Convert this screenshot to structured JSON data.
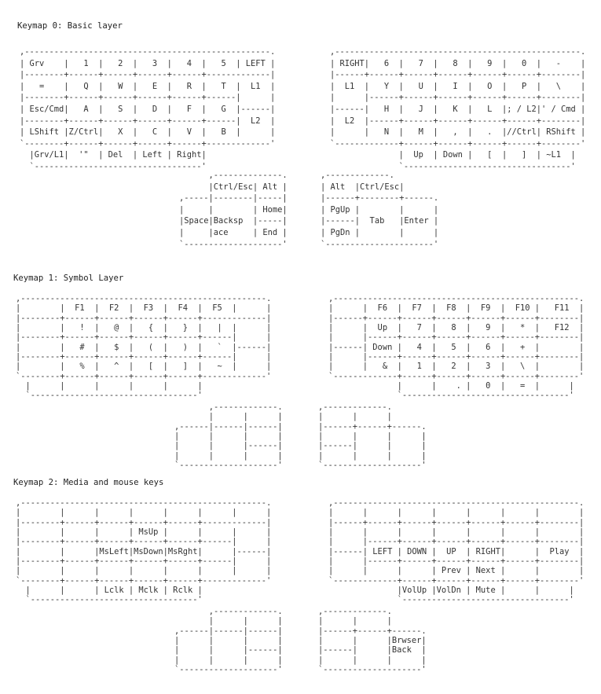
{
  "layers": [
    {
      "title": "Keymap 0: Basic layer",
      "left": [
        ",--------------------------------------------------.",
        "| Grv    |   1  |   2  |   3  |   4  |   5  | LEFT |",
        "|--------+------+------+------+------+-------------|",
        "|   =    |   Q  |   W  |   E  |   R  |   T  |  L1  |",
        "|--------+------+------+------+------+------|      |",
        "| Esc/Cmd|   A  |   S  |   D  |   F  |   G  |------|",
        "|--------+------+------+------+------+------|  L2  |",
        "| LShift |Z/Ctrl|   X  |   C  |   V  |   B  |      |",
        "`--------+------+------+------+------+-------------'",
        "  |Grv/L1|  '\"  | Del  | Left | Right|",
        "  `----------------------------------'"
      ],
      "left_thumb": [
        "      ,--------------.",
        "      |Ctrl/Esc| Alt |",
        ",-----|--------|-----|",
        "|     |        | Home|",
        "|Space|Backsp  |-----|",
        "|     |ace     | End |",
        "`--------------------'"
      ],
      "right": [
        ",--------------------------------------------------.",
        "| RIGHT|   6  |   7  |   8  |   9  |   0  |   -    |",
        "|------+------+------+------+------+------+--------|",
        "|  L1  |   Y  |   U  |   I  |   O  |   P  |   \\    |",
        "|      |------+------+------+------+------+--------|",
        "|------|   H  |   J  |   K  |   L  |; / L2|' / Cmd |",
        "|  L2  |------+------+------+------+------+--------|",
        "|      |   N  |   M  |   ,  |   .  |//Ctrl| RShift |",
        "`-------------+------+------+------+------+--------'",
        "              |  Up  | Down |   [  |   ]  | ~L1  |",
        "              `----------------------------------'"
      ],
      "right_thumb": [
        ",-------------.",
        "| Alt  |Ctrl/Esc|",
        "|------+--------+------.",
        "| PgUp |        |      |",
        "|------|  Tab   |Enter |",
        "| PgDn |        |      |",
        "`----------------------'"
      ]
    },
    {
      "title": "Keymap 1: Symbol Layer",
      "left": [
        ",--------------------------------------------------.",
        "|        |  F1  |  F2  |  F3  |  F4  |  F5  |      |",
        "|--------+------+------+------+------+-------------|",
        "|        |   !  |   @  |   {  |   }  |   |  |      |",
        "|--------+------+------+------+------+------|      |",
        "|        |   #  |   $  |   (  |   )  |   `  |------|",
        "|--------+------+------+------+------+------|      |",
        "|        |   %  |   ^  |   [  |   ]  |   ~  |      |",
        "`--------+------+------+------+------+-------------'",
        "  |      |      |      |      |      |",
        "  `----------------------------------'"
      ],
      "left_thumb": [
        "       ,-------------.",
        "       |      |      |",
        ",------|------|------|",
        "|      |      |      |",
        "|      |      |------|",
        "|      |      |      |",
        "`--------------------'"
      ],
      "right": [
        ",--------------------------------------------------.",
        "|      |  F6  |  F7  |  F8  |  F9  |  F10 |   F11  |",
        "|------+------+------+------+------+------+--------|",
        "|      |  Up  |   7  |   8  |   9  |   *  |   F12  |",
        "|      |------+------+------+------+------+--------|",
        "|------| Down |   4  |   5  |   6  |   +  |        |",
        "|      |------+------+------+------+------+--------|",
        "|      |   &  |   1  |   2  |   3  |   \\  |        |",
        "`-------------+------+------+------+------+--------'",
        "              |      |    . |   0  |   =  |      |",
        "              `----------------------------------'"
      ],
      "right_thumb": [
        ",-------------.",
        "|      |      |",
        "|------+------+------.",
        "|      |      |      |",
        "|------|      |      |",
        "|      |      |      |",
        "`--------------------'"
      ]
    },
    {
      "title": "Keymap 2: Media and mouse keys",
      "left": [
        ",--------------------------------------------------.",
        "|        |      |      |      |      |      |      |",
        "|--------+------+------+------+------+-------------|",
        "|        |      |      | MsUp |      |      |      |",
        "|--------+------+------+------+------+------|      |",
        "|        |      |MsLeft|MsDown|MsRght|      |------|",
        "|--------+------+------+------+------+------|      |",
        "|        |      |      |      |      |      |      |",
        "`--------+------+------+------+------+-------------'",
        "  |      |      | Lclk | Mclk | Rclk |",
        "  `----------------------------------'"
      ],
      "left_thumb": [
        "       ,-------------.",
        "       |      |      |",
        ",------|------|------|",
        "|      |      |      |",
        "|      |      |------|",
        "|      |      |      |",
        "`--------------------'"
      ],
      "right": [
        ",--------------------------------------------------.",
        "|      |      |      |      |      |      |        |",
        "|------+------+------+------+------+------+--------|",
        "|      |      |      |      |      |      |        |",
        "|      |------+------+------+------+------+--------|",
        "|------| LEFT | DOWN |  UP  | RIGHT|      |  Play  |",
        "|      |------+------+------+------+------+--------|",
        "|      |      |      | Prev | Next |      |        |",
        "`-------------+------+------+------+------+--------'",
        "              |VolUp |VolDn | Mute |      |      |",
        "              `----------------------------------'"
      ],
      "right_thumb": [
        ",-------------.",
        "|      |      |",
        "|------+------+------.",
        "|      |      |Brwser|",
        "|------|      |Back  |",
        "|      |      |      |",
        "`--------------------'"
      ]
    }
  ]
}
